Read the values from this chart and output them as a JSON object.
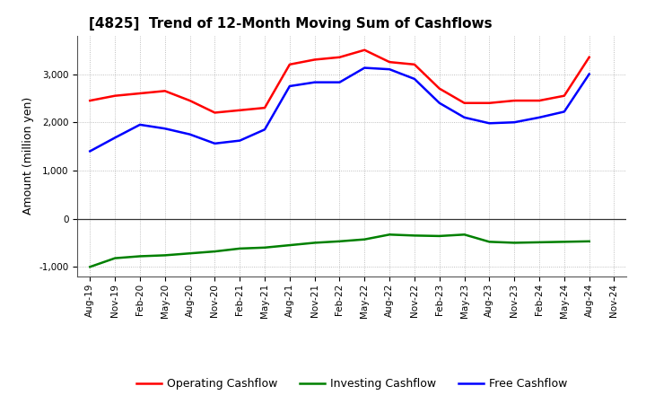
{
  "title": "[4825]  Trend of 12-Month Moving Sum of Cashflows",
  "ylabel": "Amount (million yen)",
  "x_labels": [
    "Aug-19",
    "Nov-19",
    "Feb-20",
    "May-20",
    "Aug-20",
    "Nov-20",
    "Feb-21",
    "May-21",
    "Aug-21",
    "Nov-21",
    "Feb-22",
    "May-22",
    "Aug-22",
    "Nov-22",
    "Feb-23",
    "May-23",
    "Aug-23",
    "Nov-23",
    "Feb-24",
    "May-24",
    "Aug-24",
    "Nov-24"
  ],
  "operating": [
    2450,
    2550,
    2600,
    2650,
    2450,
    2200,
    2250,
    2300,
    3200,
    3300,
    3350,
    3500,
    3250,
    3200,
    2700,
    2400,
    2400,
    2450,
    2450,
    2550,
    3350,
    null
  ],
  "investing": [
    -1000,
    -820,
    -780,
    -760,
    -720,
    -680,
    -620,
    -600,
    -550,
    -500,
    -470,
    -430,
    -330,
    -350,
    -360,
    -330,
    -480,
    -500,
    -490,
    -480,
    -470,
    null
  ],
  "free": [
    1400,
    1680,
    1950,
    1870,
    1750,
    1560,
    1620,
    1850,
    2750,
    2830,
    2830,
    3130,
    3100,
    2900,
    2400,
    2100,
    1980,
    2000,
    2100,
    2220,
    3000,
    null
  ],
  "operating_color": "#ff0000",
  "investing_color": "#008000",
  "free_color": "#0000ff",
  "ylim": [
    -1200,
    3800
  ],
  "yticks": [
    -1000,
    0,
    1000,
    2000,
    3000
  ],
  "grid_color": "#999999",
  "background_color": "#ffffff",
  "line_width": 1.8
}
